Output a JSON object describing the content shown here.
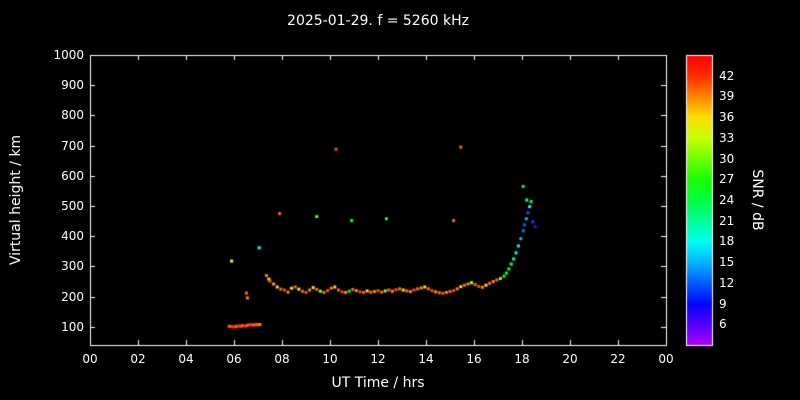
{
  "chart_data": {
    "type": "scatter",
    "title": "2025-01-29. f = 5260 kHz",
    "xlabel": "UT Time / hrs",
    "ylabel": "Virtual height / km",
    "colorbar_label": "SNR / dB",
    "background": "#000000",
    "axis_color": "#ffffff",
    "grid": false,
    "xlim": [
      0,
      24
    ],
    "ylim": [
      40,
      1000
    ],
    "snr_lim": [
      3,
      45
    ],
    "x_tick_hours": [
      0,
      2,
      4,
      6,
      8,
      10,
      12,
      14,
      16,
      18,
      20,
      22,
      24
    ],
    "x_tick_labels": [
      "00",
      "02",
      "04",
      "06",
      "08",
      "10",
      "12",
      "14",
      "16",
      "18",
      "20",
      "22",
      "00"
    ],
    "y_tick_values": [
      100,
      200,
      300,
      400,
      500,
      600,
      700,
      800,
      900,
      1000
    ],
    "colorbar_tick_values": [
      6,
      9,
      12,
      15,
      18,
      21,
      24,
      27,
      30,
      33,
      36,
      39,
      42
    ],
    "points_format": [
      "ut_hour",
      "virtual_height_km",
      "snr_db"
    ],
    "points": [
      [
        5.8,
        102,
        40
      ],
      [
        5.88,
        101,
        41
      ],
      [
        5.96,
        100,
        42
      ],
      [
        6.04,
        100,
        41
      ],
      [
        6.12,
        102,
        40
      ],
      [
        6.2,
        103,
        42
      ],
      [
        6.28,
        102,
        41
      ],
      [
        6.36,
        104,
        40
      ],
      [
        6.44,
        103,
        42
      ],
      [
        6.52,
        104,
        41
      ],
      [
        6.6,
        106,
        40
      ],
      [
        6.68,
        107,
        42
      ],
      [
        6.76,
        107,
        41
      ],
      [
        6.84,
        106,
        40
      ],
      [
        6.92,
        108,
        41
      ],
      [
        7.0,
        107,
        40
      ],
      [
        7.08,
        108,
        39
      ],
      [
        5.9,
        318,
        35
      ],
      [
        6.52,
        212,
        40
      ],
      [
        6.56,
        196,
        39
      ],
      [
        7.05,
        362,
        18
      ],
      [
        7.35,
        270,
        39
      ],
      [
        7.45,
        258,
        36
      ],
      [
        7.5,
        252,
        40
      ],
      [
        7.65,
        242,
        38
      ],
      [
        7.8,
        232,
        36
      ],
      [
        7.95,
        225,
        40
      ],
      [
        8.1,
        222,
        41
      ],
      [
        8.25,
        215,
        39
      ],
      [
        8.4,
        228,
        36
      ],
      [
        8.55,
        232,
        40
      ],
      [
        8.7,
        225,
        33
      ],
      [
        8.85,
        218,
        40
      ],
      [
        9.0,
        214,
        41
      ],
      [
        9.15,
        222,
        39
      ],
      [
        9.3,
        230,
        36
      ],
      [
        9.45,
        224,
        40
      ],
      [
        9.6,
        218,
        31
      ],
      [
        9.75,
        214,
        40
      ],
      [
        9.9,
        220,
        41
      ],
      [
        10.05,
        228,
        39
      ],
      [
        10.2,
        232,
        36
      ],
      [
        10.35,
        222,
        40
      ],
      [
        10.5,
        216,
        41
      ],
      [
        10.65,
        214,
        39
      ],
      [
        10.8,
        218,
        26
      ],
      [
        10.95,
        224,
        40
      ],
      [
        11.1,
        220,
        39
      ],
      [
        11.25,
        216,
        41
      ],
      [
        11.4,
        214,
        40
      ],
      [
        11.55,
        219,
        36
      ],
      [
        11.7,
        215,
        40
      ],
      [
        11.85,
        217,
        39
      ],
      [
        12.0,
        220,
        41
      ],
      [
        12.15,
        215,
        40
      ],
      [
        12.3,
        219,
        31
      ],
      [
        12.45,
        222,
        40
      ],
      [
        12.6,
        218,
        39
      ],
      [
        12.75,
        223,
        41
      ],
      [
        12.9,
        226,
        40
      ],
      [
        13.05,
        222,
        36
      ],
      [
        13.2,
        219,
        40
      ],
      [
        13.35,
        217,
        39
      ],
      [
        13.5,
        222,
        41
      ],
      [
        13.65,
        226,
        40
      ],
      [
        13.8,
        229,
        39
      ],
      [
        13.95,
        232,
        36
      ],
      [
        14.1,
        226,
        40
      ],
      [
        14.25,
        220,
        41
      ],
      [
        14.4,
        216,
        39
      ],
      [
        14.55,
        213,
        40
      ],
      [
        14.7,
        211,
        41
      ],
      [
        14.85,
        214,
        39
      ],
      [
        15.0,
        217,
        40
      ],
      [
        15.15,
        220,
        41
      ],
      [
        15.3,
        226,
        39
      ],
      [
        15.45,
        233,
        36
      ],
      [
        15.6,
        238,
        40
      ],
      [
        15.75,
        242,
        39
      ],
      [
        15.9,
        246,
        33
      ],
      [
        16.05,
        240,
        40
      ],
      [
        16.2,
        234,
        41
      ],
      [
        16.35,
        231,
        39
      ],
      [
        16.5,
        238,
        36
      ],
      [
        16.65,
        244,
        40
      ],
      [
        16.8,
        250,
        39
      ],
      [
        16.95,
        255,
        40
      ],
      [
        17.1,
        260,
        31
      ],
      [
        17.25,
        268,
        27
      ],
      [
        17.35,
        278,
        25
      ],
      [
        17.45,
        292,
        24
      ],
      [
        17.55,
        308,
        22
      ],
      [
        17.65,
        325,
        21
      ],
      [
        17.75,
        345,
        19
      ],
      [
        17.85,
        368,
        17
      ],
      [
        17.95,
        392,
        15
      ],
      [
        18.05,
        418,
        13
      ],
      [
        18.1,
        438,
        12
      ],
      [
        18.18,
        458,
        15
      ],
      [
        18.25,
        478,
        12
      ],
      [
        18.32,
        498,
        18
      ],
      [
        18.38,
        515,
        25
      ],
      [
        18.45,
        448,
        11
      ],
      [
        18.55,
        432,
        10
      ],
      [
        7.9,
        475,
        40
      ],
      [
        9.45,
        465,
        30
      ],
      [
        10.25,
        688,
        41
      ],
      [
        10.9,
        452,
        25
      ],
      [
        12.35,
        458,
        28
      ],
      [
        15.15,
        452,
        40
      ],
      [
        15.45,
        695,
        40
      ],
      [
        18.05,
        565,
        26
      ],
      [
        18.2,
        520,
        21
      ]
    ]
  }
}
